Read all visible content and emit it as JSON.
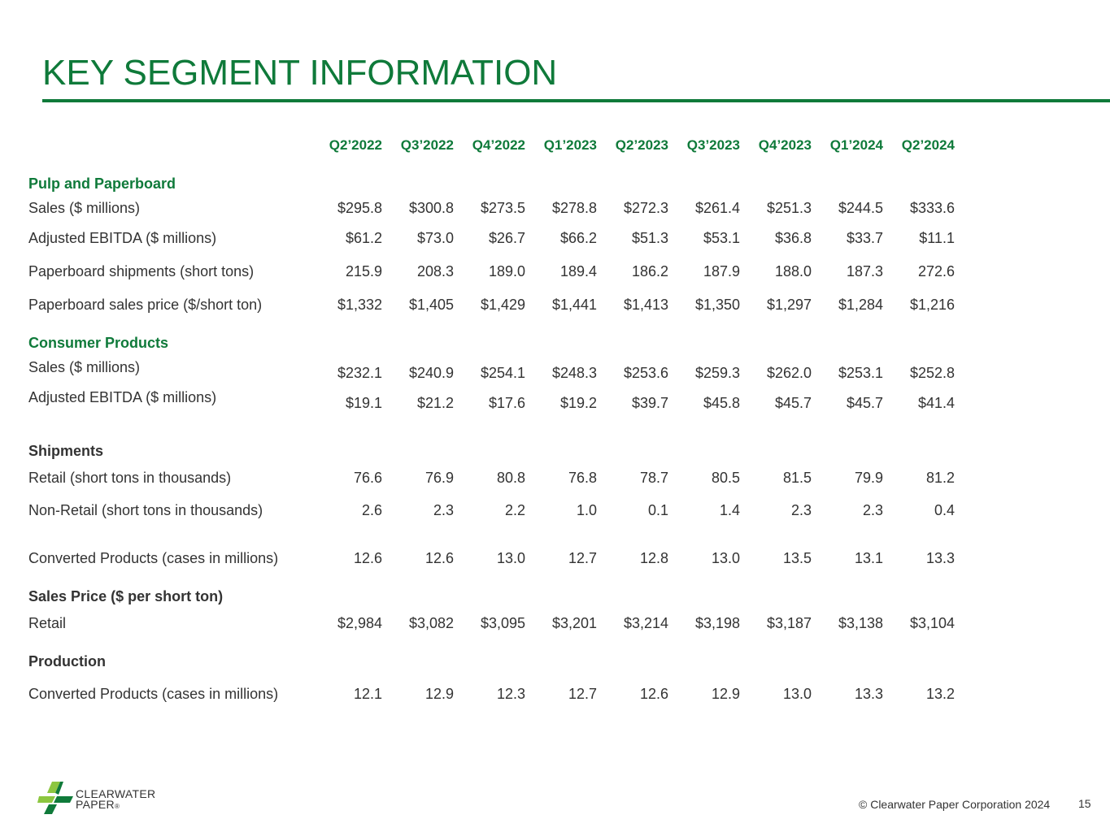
{
  "title": "KEY SEGMENT INFORMATION",
  "columns": [
    "Q2’2022",
    "Q3’2022",
    "Q4’2022",
    "Q1’2023",
    "Q2’2023",
    "Q3’2023",
    "Q4’2023",
    "Q1’2024",
    "Q2’2024"
  ],
  "sections": {
    "pulp": {
      "heading": "Pulp and Paperboard",
      "rows": [
        {
          "label": "Sales ($ millions)",
          "values": [
            "$295.8",
            "$300.8",
            "$273.5",
            "$278.8",
            "$272.3",
            "$261.4",
            "$251.3",
            "$244.5",
            "$333.6"
          ]
        },
        {
          "label": "Adjusted EBITDA ($ millions)",
          "values": [
            "$61.2",
            "$73.0",
            "$26.7",
            "$66.2",
            "$51.3",
            "$53.1",
            "$36.8",
            "$33.7",
            "$11.1"
          ]
        },
        {
          "label": "Paperboard shipments (short tons)",
          "values": [
            "215.9",
            "208.3",
            "189.0",
            "189.4",
            "186.2",
            "187.9",
            "188.0",
            "187.3",
            "272.6"
          ]
        },
        {
          "label": "Paperboard sales price ($/short ton)",
          "values": [
            "$1,332",
            "$1,405",
            "$1,429",
            "$1,441",
            "$1,413",
            "$1,350",
            "$1,297",
            "$1,284",
            "$1,216"
          ]
        }
      ]
    },
    "consumer": {
      "heading": "Consumer Products",
      "rows": [
        {
          "label": "Sales ($ millions)",
          "values": [
            "$232.1",
            "$240.9",
            "$254.1",
            "$248.3",
            "$253.6",
            "$259.3",
            "$262.0",
            "$253.1",
            "$252.8"
          ]
        },
        {
          "label": "Adjusted EBITDA ($ millions)",
          "values": [
            "$19.1",
            "$21.2",
            "$17.6",
            "$19.2",
            "$39.7",
            "$45.8",
            "$45.7",
            "$45.7",
            "$41.4"
          ]
        }
      ]
    },
    "shipments": {
      "heading": "Shipments",
      "rows": [
        {
          "label": "Retail (short tons in thousands)",
          "values": [
            "76.6",
            "76.9",
            "80.8",
            "76.8",
            "78.7",
            "80.5",
            "81.5",
            "79.9",
            "81.2"
          ]
        },
        {
          "label": "Non-Retail (short tons in thousands)",
          "values": [
            "2.6",
            "2.3",
            "2.2",
            "1.0",
            "0.1",
            "1.4",
            "2.3",
            "2.3",
            "0.4"
          ]
        },
        {
          "label": "Converted Products (cases in millions)",
          "values": [
            "12.6",
            "12.6",
            "13.0",
            "12.7",
            "12.8",
            "13.0",
            "13.5",
            "13.1",
            "13.3"
          ]
        }
      ]
    },
    "price": {
      "heading": "Sales Price ($ per short ton)",
      "rows": [
        {
          "label": "Retail",
          "values": [
            "$2,984",
            "$3,082",
            "$3,095",
            "$3,201",
            "$3,214",
            "$3,198",
            "$3,187",
            "$3,138",
            "$3,104"
          ]
        }
      ]
    },
    "production": {
      "heading": "Production",
      "rows": [
        {
          "label": "Converted Products (cases in millions)",
          "values": [
            "12.1",
            "12.9",
            "12.3",
            "12.7",
            "12.6",
            "12.9",
            "13.0",
            "13.3",
            "13.2"
          ]
        }
      ]
    }
  },
  "footer": {
    "copyright": "© Clearwater Paper Corporation 2024",
    "page_number": "15",
    "logo_text_line1": "CLEARWATER",
    "logo_text_line2": "PAPER",
    "logo_mark": "®"
  },
  "colors": {
    "accent": "#0f7a3a",
    "text": "#333333",
    "logo_light": "#8cc63f"
  }
}
